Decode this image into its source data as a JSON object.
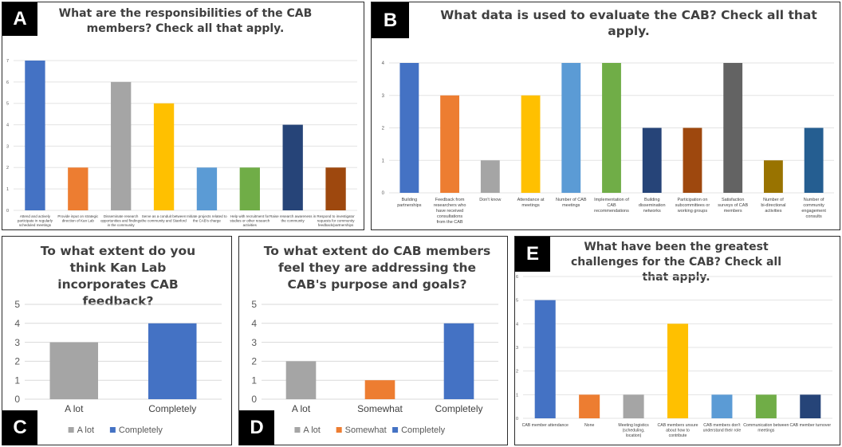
{
  "chart_data": [
    {
      "panel": "A",
      "type": "bar",
      "title": "What are the responsibilities of the CAB members? Check all that apply.",
      "categories": [
        "Attend and actively participate in regularly scheduled meetings",
        "Provide input on strategic direction of Kan Lab",
        "Disseminate research opportunities and findings in the community",
        "Serve as a conduit between the community and Stanford",
        "Initiate projects related to the CAB's charge",
        "Help with recruitment for studies or other research activities",
        "Raise research awareness in the community",
        "Respond to investigator requests for community feedback/partnerships"
      ],
      "values": [
        7,
        2,
        6,
        5,
        2,
        2,
        4,
        2
      ],
      "colors": [
        "#4472C4",
        "#ED7D31",
        "#A5A5A5",
        "#FFC000",
        "#5B9BD5",
        "#70AD47",
        "#264478",
        "#9E480E"
      ],
      "ylim": [
        0,
        7
      ],
      "yticks": [
        "0",
        "1",
        "2",
        "3",
        "4",
        "5",
        "6",
        "7"
      ]
    },
    {
      "panel": "B",
      "type": "bar",
      "title": "What data is used to evaluate the CAB? Check all that apply.",
      "categories": [
        "Building partnerships",
        "Feedback from researchers who have received consultations from the CAB",
        "Don't know",
        "Attendance at meetings",
        "Number of CAB meetings",
        "Implementation of CAB recommendations",
        "Building dissemination networks",
        "Participation on subcommittees or working groups",
        "Satisfaction surveys of CAB members",
        "Number of bi-directional activities",
        "Number of community engagement consults"
      ],
      "values": [
        4,
        3,
        1,
        3,
        4,
        4,
        2,
        2,
        4,
        1,
        2
      ],
      "colors": [
        "#4472C4",
        "#ED7D31",
        "#A5A5A5",
        "#FFC000",
        "#5B9BD5",
        "#70AD47",
        "#264478",
        "#9E480E",
        "#636363",
        "#997300",
        "#255E91"
      ],
      "ylim": [
        0,
        4
      ],
      "yticks": [
        "0",
        "1",
        "2",
        "3",
        "4"
      ]
    },
    {
      "panel": "C",
      "type": "bar",
      "title": "To what extent do you think Kan Lab incorporates CAB feedback?",
      "categories": [
        "A lot",
        "Completely"
      ],
      "values": [
        3,
        4
      ],
      "colors": [
        "#A5A5A5",
        "#4472C4"
      ],
      "legend": [
        "A lot",
        "Completely"
      ],
      "ylim": [
        0,
        5
      ],
      "yticks": [
        "0",
        "1",
        "2",
        "3",
        "4",
        "5"
      ]
    },
    {
      "panel": "D",
      "type": "bar",
      "title": "To what extent do CAB members feel they are addressing the CAB's purpose and goals?",
      "categories": [
        "A lot",
        "Somewhat",
        "Completely"
      ],
      "values": [
        2,
        1,
        4
      ],
      "colors": [
        "#A5A5A5",
        "#ED7D31",
        "#4472C4"
      ],
      "legend": [
        "A lot",
        "Somewhat",
        "Completely"
      ],
      "ylim": [
        0,
        5
      ],
      "yticks": [
        "0",
        "1",
        "2",
        "3",
        "4",
        "5"
      ]
    },
    {
      "panel": "E",
      "type": "bar",
      "title": "What have been the greatest challenges for the CAB? Check all that apply.",
      "categories": [
        "CAB member attendance",
        "None",
        "Meeting logistics (scheduling, location)",
        "CAB members unsure about how to contribute",
        "CAB members don't understand their role",
        "Communication between meetings",
        "CAB member turnover"
      ],
      "values": [
        5,
        1,
        1,
        4,
        1,
        1,
        1
      ],
      "colors": [
        "#4472C4",
        "#ED7D31",
        "#A5A5A5",
        "#FFC000",
        "#5B9BD5",
        "#70AD47",
        "#264478"
      ],
      "ylim": [
        0,
        6
      ],
      "yticks": [
        "0",
        "1",
        "2",
        "3",
        "4",
        "5",
        "6"
      ]
    }
  ]
}
